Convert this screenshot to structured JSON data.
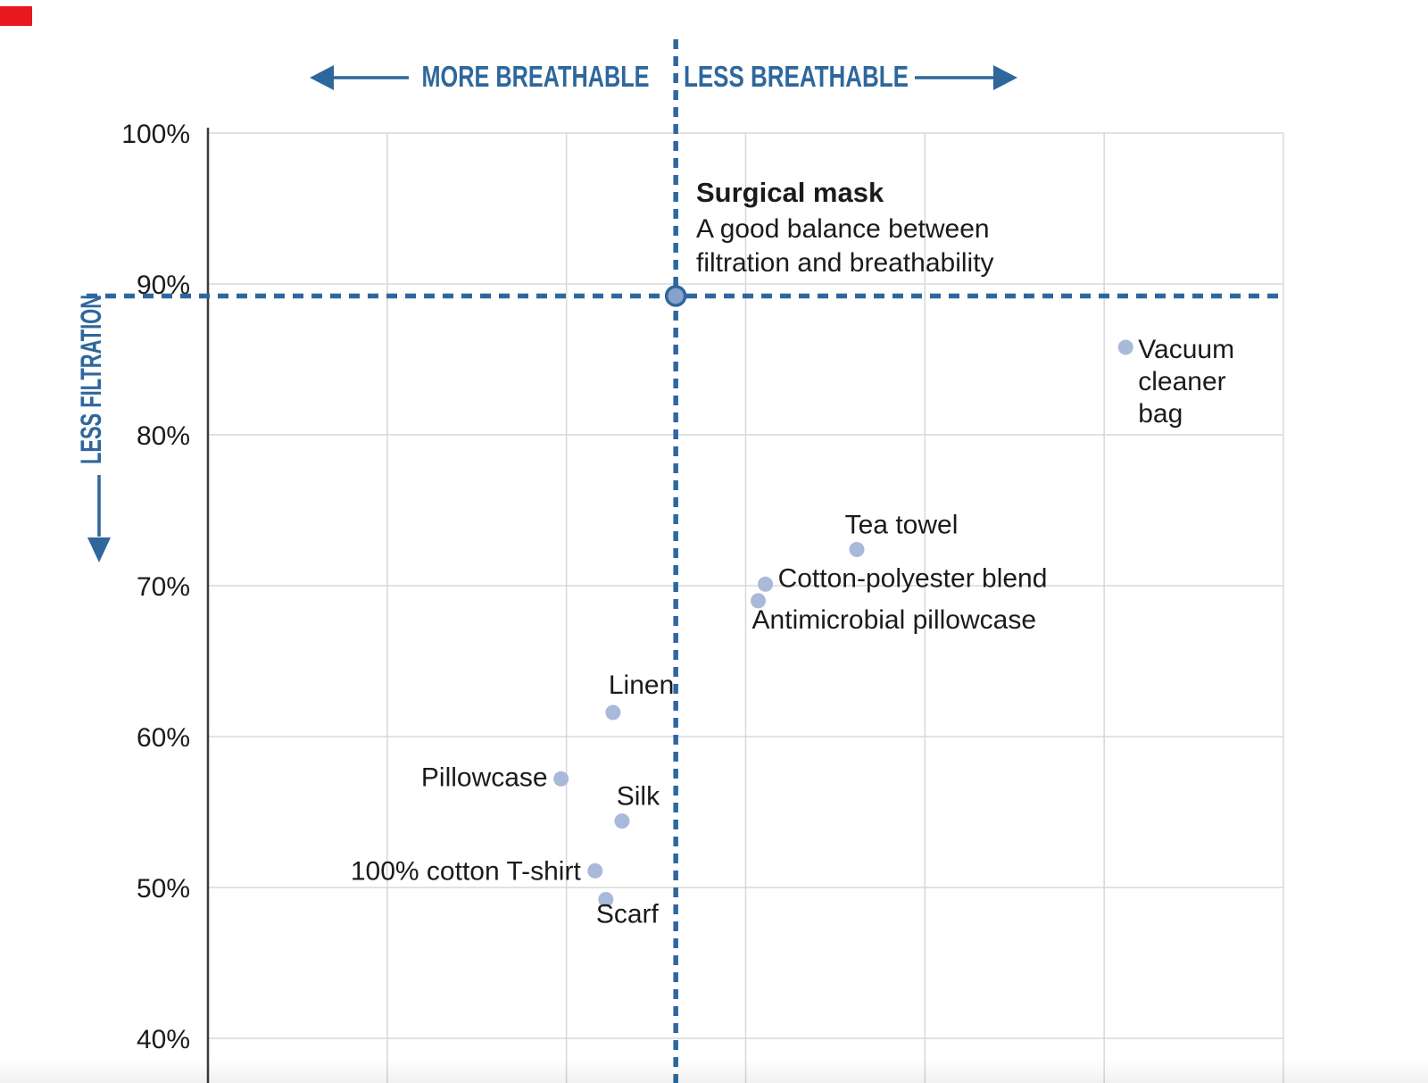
{
  "chart_data": {
    "type": "scatter",
    "x_axis": {
      "left_label": "MORE BREATHABLE",
      "right_label": "LESS BREATHABLE",
      "gridline_units_range": [
        0,
        6
      ]
    },
    "y_axis": {
      "label": "LESS FILTRATION",
      "ticks": [
        {
          "label": "100%",
          "value": 100
        },
        {
          "label": "90%",
          "value": 90
        },
        {
          "label": "80%",
          "value": 80
        },
        {
          "label": "70%",
          "value": 70
        },
        {
          "label": "60%",
          "value": 60
        },
        {
          "label": "50%",
          "value": 50
        },
        {
          "label": "40%",
          "value": 40
        }
      ]
    },
    "reference_point": {
      "label": "Surgical mask",
      "x": 2.61,
      "y": 89.2,
      "annotation_title": "Surgical mask",
      "annotation_body": "A good balance between filtration and breathability"
    },
    "points": [
      {
        "label": "Vacuum cleaner bag",
        "x": 5.12,
        "y": 85.8
      },
      {
        "label": "Tea towel",
        "x": 3.62,
        "y": 72.4
      },
      {
        "label": "Cotton-polyester blend",
        "x": 3.11,
        "y": 70.1
      },
      {
        "label": "Antimicrobial pillowcase",
        "x": 3.07,
        "y": 69.0
      },
      {
        "label": "Linen",
        "x": 2.26,
        "y": 61.6
      },
      {
        "label": "Pillowcase",
        "x": 1.97,
        "y": 57.2
      },
      {
        "label": "Silk",
        "x": 2.31,
        "y": 54.4
      },
      {
        "label": "100% cotton T-shirt",
        "x": 2.16,
        "y": 51.1
      },
      {
        "label": "Scarf",
        "x": 2.22,
        "y": 49.2
      }
    ],
    "grid": true,
    "legend": false
  },
  "colors": {
    "accent_blue": "#2e679c",
    "point_fill": "#a9b9da",
    "reference_fill": "#85a3cd",
    "gridline": "#d8d8d8",
    "axis": "#3a3a3a",
    "text": "#1b1b1b",
    "record_red": "#e8191f",
    "background": "#ffffff"
  }
}
